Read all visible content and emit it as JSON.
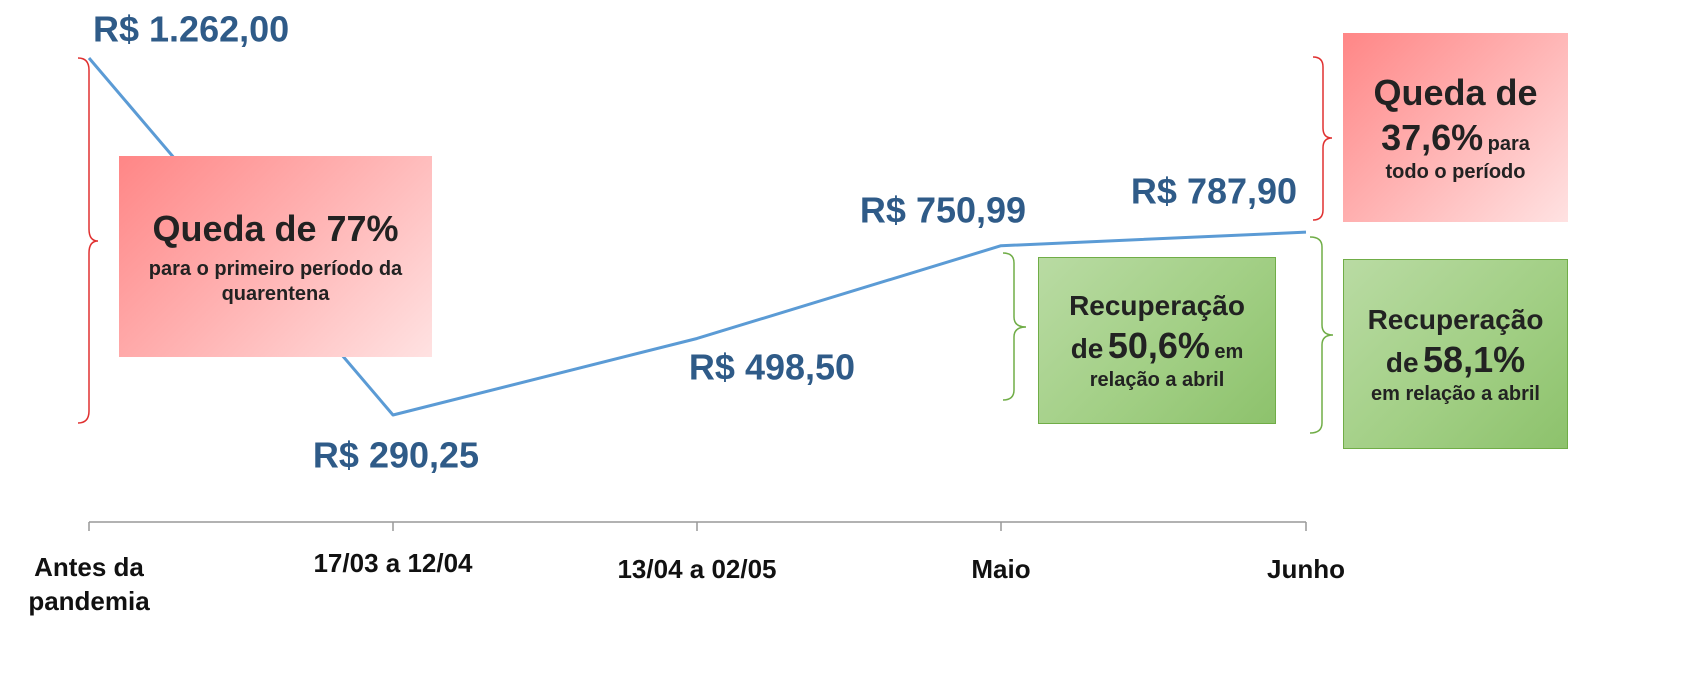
{
  "chart_data": {
    "type": "line",
    "categories": [
      "Antes da pandemia",
      "17/03 a 12/04",
      "13/04 a 02/05",
      "Maio",
      "Junho"
    ],
    "values": [
      1262,
      290.25,
      498.5,
      750.99,
      787.9
    ],
    "value_labels": [
      "R$ 1.262,00",
      "R$ 290,25",
      "R$ 498,50",
      "R$ 750,99",
      "R$ 787,90"
    ],
    "color": "#5b9bd5",
    "annotations": [
      {
        "parts": [
          "Queda de 77%",
          "para o primeiro período da quarentena"
        ]
      },
      {
        "parts": [
          "Recuperação",
          "de",
          "50,6%",
          "em",
          "relação a abril"
        ]
      },
      {
        "parts": [
          "Queda de",
          "37,6%",
          "para",
          "todo o período"
        ]
      },
      {
        "parts": [
          "Recuperação",
          "de",
          "58,1%",
          "em relação a abril"
        ]
      }
    ]
  }
}
